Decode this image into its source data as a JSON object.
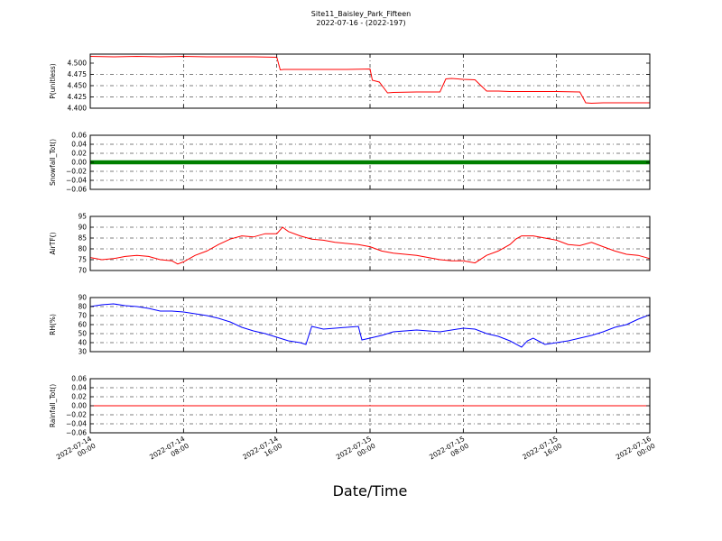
{
  "title": "Site11_Baisley_Park_Fifteen",
  "subtitle": "2022-07-16 - (2022-197)",
  "xlabel": "Date/Time",
  "chart_data": [
    {
      "type": "line",
      "ylabel": "P(unitless)",
      "ylim": [
        4.4,
        4.52
      ],
      "yticks": [
        4.4,
        4.425,
        4.45,
        4.475,
        4.5
      ],
      "ytick_labels": [
        "4.400",
        "4.425",
        "4.450",
        "4.475",
        "4.500"
      ],
      "color": "#ff0000",
      "series": [
        {
          "x": [
            0,
            2,
            4,
            6,
            8,
            10,
            12,
            14,
            16,
            16.3,
            16.6,
            18,
            20,
            22,
            24,
            24.2,
            24.8,
            25.5,
            26,
            28,
            30,
            30.5,
            31,
            32,
            33,
            34,
            34.5,
            35,
            36,
            38,
            40,
            42,
            42.5,
            43,
            44,
            46,
            48
          ],
          "y": [
            4.515,
            4.514,
            4.515,
            4.514,
            4.515,
            4.514,
            4.514,
            4.514,
            4.513,
            4.485,
            4.486,
            4.486,
            4.486,
            4.486,
            4.487,
            4.462,
            4.458,
            4.434,
            4.435,
            4.436,
            4.436,
            4.465,
            4.466,
            4.464,
            4.463,
            4.438,
            4.438,
            4.438,
            4.437,
            4.437,
            4.437,
            4.436,
            4.412,
            4.411,
            4.412,
            4.412,
            4.412
          ]
        }
      ]
    },
    {
      "type": "line",
      "ylabel": "Snowfall_Tot()",
      "ylim": [
        -0.06,
        0.06
      ],
      "yticks": [
        -0.06,
        -0.04,
        -0.02,
        0,
        0.02,
        0.04,
        0.06
      ],
      "ytick_labels": [
        "−0.06",
        "−0.04",
        "−0.02",
        "0.00",
        "0.02",
        "0.04",
        "0.06"
      ],
      "color": "#008000",
      "marker": true,
      "series": [
        {
          "constant": 0
        }
      ]
    },
    {
      "type": "line",
      "ylabel": "AirTF()",
      "ylim": [
        70,
        95
      ],
      "yticks": [
        70,
        75,
        80,
        85,
        90,
        95
      ],
      "ytick_labels": [
        "70",
        "75",
        "80",
        "85",
        "90",
        "95"
      ],
      "color": "#ff0000",
      "series": [
        {
          "x": [
            0,
            1,
            2,
            3,
            4,
            5,
            6,
            7,
            7.5,
            8,
            9,
            10,
            11,
            12,
            13,
            14,
            15,
            16,
            16.5,
            17,
            18,
            19,
            20,
            21,
            22,
            23,
            24,
            25,
            26,
            27,
            28,
            29,
            30,
            31,
            32,
            33,
            34,
            35,
            36,
            36.5,
            37,
            38,
            39,
            40,
            41,
            42,
            43,
            44,
            45,
            46,
            47,
            48
          ],
          "y": [
            76,
            75,
            75.5,
            76.5,
            77,
            76.5,
            75,
            74.5,
            73,
            74,
            77,
            79,
            82,
            84.5,
            86,
            85.5,
            87,
            87,
            90,
            88,
            86,
            84.5,
            84,
            83,
            82.5,
            82,
            81,
            79,
            78,
            77.5,
            77,
            76,
            75,
            74.5,
            74.5,
            73.5,
            77,
            79,
            82,
            84.5,
            86,
            86,
            85,
            84,
            82,
            81.5,
            83,
            81,
            79,
            77.5,
            77,
            75.5
          ]
        }
      ]
    },
    {
      "type": "line",
      "ylabel": "RH(%)",
      "ylim": [
        30,
        90
      ],
      "yticks": [
        30,
        40,
        50,
        60,
        70,
        80,
        90
      ],
      "ytick_labels": [
        "30",
        "40",
        "50",
        "60",
        "70",
        "80",
        "90"
      ],
      "color": "#0000ff",
      "series": [
        {
          "x": [
            0,
            1,
            2,
            3,
            4,
            5,
            6,
            7,
            8,
            9,
            10,
            11,
            12,
            13,
            14,
            15,
            16,
            17,
            18,
            18.5,
            19,
            20,
            21,
            22,
            23,
            23.3,
            24,
            25,
            26,
            27,
            28,
            29,
            30,
            31,
            32,
            33,
            34,
            35,
            36,
            37,
            37.5,
            38,
            39,
            40,
            41,
            42,
            43,
            44,
            45,
            46,
            47,
            48
          ],
          "y": [
            80,
            82,
            83,
            81,
            80,
            78,
            75,
            75,
            74,
            72,
            70,
            67,
            63,
            57,
            53,
            50,
            46,
            42,
            40,
            38,
            58,
            55,
            56,
            57,
            58,
            43,
            45,
            48,
            52,
            53,
            54,
            53,
            52,
            54,
            56,
            55,
            50,
            47,
            42,
            35,
            42,
            45,
            38,
            40,
            42,
            45,
            48,
            52,
            57,
            60,
            66,
            71
          ]
        }
      ]
    },
    {
      "type": "line",
      "ylabel": "Rainfall_Tot()",
      "ylim": [
        -0.06,
        0.06
      ],
      "yticks": [
        -0.06,
        -0.04,
        -0.02,
        0,
        0.02,
        0.04,
        0.06
      ],
      "ytick_labels": [
        "−0.06",
        "−0.04",
        "−0.02",
        "0.00",
        "0.02",
        "0.04",
        "0.06"
      ],
      "color": "#ff0000",
      "series": [
        {
          "constant": 0
        }
      ]
    }
  ],
  "x_ticks": [
    {
      "line1": "2022-07-14",
      "line2": "00:00"
    },
    {
      "line1": "2022-07-14",
      "line2": "08:00"
    },
    {
      "line1": "2022-07-14",
      "line2": "16:00"
    },
    {
      "line1": "2022-07-15",
      "line2": "00:00"
    },
    {
      "line1": "2022-07-15",
      "line2": "08:00"
    },
    {
      "line1": "2022-07-15",
      "line2": "16:00"
    },
    {
      "line1": "2022-07-16",
      "line2": "00:00"
    }
  ]
}
